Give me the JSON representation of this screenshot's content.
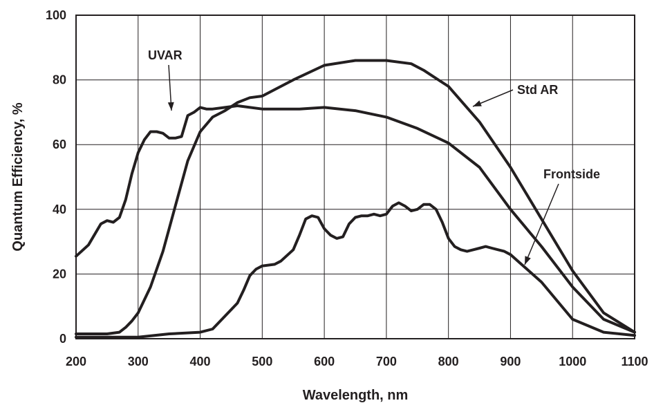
{
  "chart_data": {
    "type": "line",
    "title": "",
    "xlabel": "Wavelength, nm",
    "ylabel": "Quantum Efficiency, %",
    "xlim": [
      200,
      1100
    ],
    "ylim": [
      0,
      100
    ],
    "x_ticks": [
      200,
      300,
      400,
      500,
      600,
      700,
      800,
      900,
      1000,
      1100
    ],
    "y_ticks": [
      0,
      20,
      40,
      60,
      80,
      100
    ],
    "grid": true,
    "legend": "none",
    "line_color": "#231f20",
    "series": [
      {
        "name": "UVAR",
        "x": [
          200,
          220,
          240,
          250,
          260,
          270,
          280,
          290,
          300,
          310,
          320,
          330,
          340,
          350,
          360,
          370,
          380,
          390,
          400,
          410,
          420,
          440,
          460,
          500,
          520,
          560,
          600,
          650,
          700,
          750,
          800,
          850,
          900,
          950,
          1000,
          1050,
          1100
        ],
        "y": [
          25.5,
          29,
          35.5,
          36.5,
          36,
          37.5,
          43,
          51,
          57.5,
          61.5,
          64,
          64,
          63.5,
          62,
          62,
          62.5,
          69,
          70,
          71.5,
          71,
          71,
          71.5,
          72,
          71,
          71,
          71,
          71.5,
          70.5,
          68.5,
          65,
          60.5,
          53,
          40,
          28.5,
          16,
          6,
          2
        ]
      },
      {
        "name": "Std AR",
        "x": [
          200,
          250,
          270,
          280,
          290,
          300,
          320,
          340,
          360,
          380,
          400,
          420,
          440,
          460,
          480,
          500,
          520,
          550,
          600,
          650,
          700,
          740,
          760,
          780,
          800,
          850,
          900,
          950,
          1000,
          1050,
          1100
        ],
        "y": [
          1.5,
          1.5,
          2,
          3.5,
          5.5,
          8,
          16,
          27,
          41,
          55,
          64,
          68.5,
          70.5,
          73,
          74.5,
          75,
          77,
          80,
          84.5,
          86,
          86,
          85,
          83,
          80.5,
          78,
          67,
          53,
          37,
          21,
          8,
          2
        ]
      },
      {
        "name": "Frontside",
        "x": [
          200,
          300,
          350,
          400,
          420,
          440,
          460,
          470,
          480,
          490,
          500,
          520,
          530,
          550,
          560,
          570,
          580,
          590,
          600,
          610,
          620,
          630,
          640,
          650,
          660,
          670,
          680,
          690,
          700,
          710,
          720,
          730,
          740,
          750,
          760,
          770,
          780,
          790,
          800,
          810,
          820,
          830,
          840,
          850,
          860,
          870,
          880,
          890,
          900,
          950,
          1000,
          1050,
          1100
        ],
        "y": [
          0.5,
          0.5,
          1.5,
          2,
          3,
          7,
          11,
          15,
          19.5,
          21.5,
          22.5,
          23,
          24,
          27.5,
          32,
          37,
          38,
          37.5,
          34,
          32,
          31,
          31.5,
          35.5,
          37.5,
          38,
          38,
          38.5,
          38,
          38.5,
          41,
          42,
          41,
          39.5,
          40,
          41.5,
          41.5,
          40,
          36,
          31,
          28.5,
          27.5,
          27,
          27.5,
          28,
          28.5,
          28,
          27.5,
          27,
          26,
          17.5,
          6,
          2,
          1
        ]
      }
    ],
    "annotations": [
      {
        "text": "UVAR",
        "target_series": "UVAR"
      },
      {
        "text": "Std AR",
        "target_series": "Std AR"
      },
      {
        "text": "Frontside",
        "target_series": "Frontside"
      }
    ]
  }
}
